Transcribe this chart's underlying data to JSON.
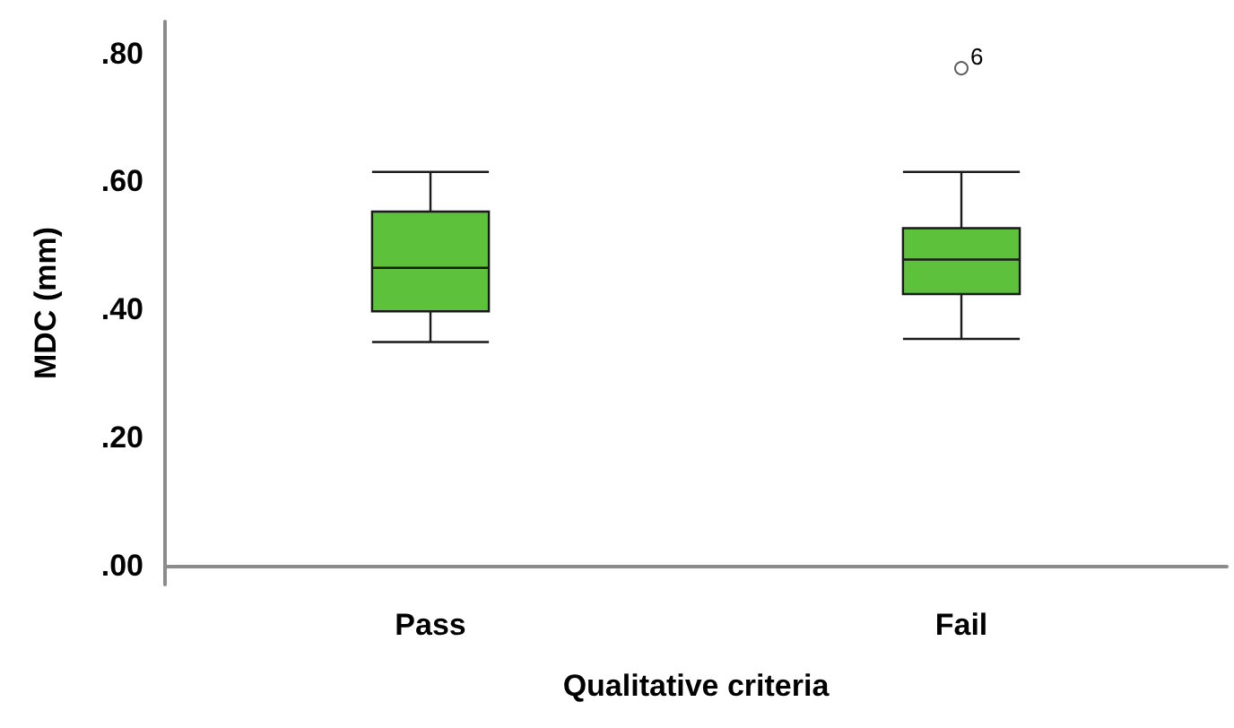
{
  "chart_data": {
    "type": "box",
    "xlabel": "Qualitative criteria",
    "ylabel": "MDC (mm)",
    "categories": [
      "Pass",
      "Fail"
    ],
    "series": [
      {
        "color": "#5dc13b",
        "boxes": [
          {
            "low": 0.349,
            "q1": 0.397,
            "median": 0.465,
            "q3": 0.553,
            "high": 0.615
          },
          {
            "low": 0.354,
            "q1": 0.424,
            "median": 0.478,
            "q3": 0.527,
            "high": 0.615,
            "outliers": [
              0.777
            ]
          }
        ]
      }
    ],
    "ylim": [
      -0.03,
      0.85
    ],
    "yticks": [
      {
        "value": 0,
        "label": ".00"
      },
      {
        "value": 0.2,
        "label": ".20"
      },
      {
        "value": 0.4,
        "label": ".40"
      },
      {
        "value": 0.6,
        "label": ".60"
      },
      {
        "value": 0.8,
        "label": ".80"
      }
    ],
    "annotations": [
      "6"
    ],
    "grid": false
  }
}
